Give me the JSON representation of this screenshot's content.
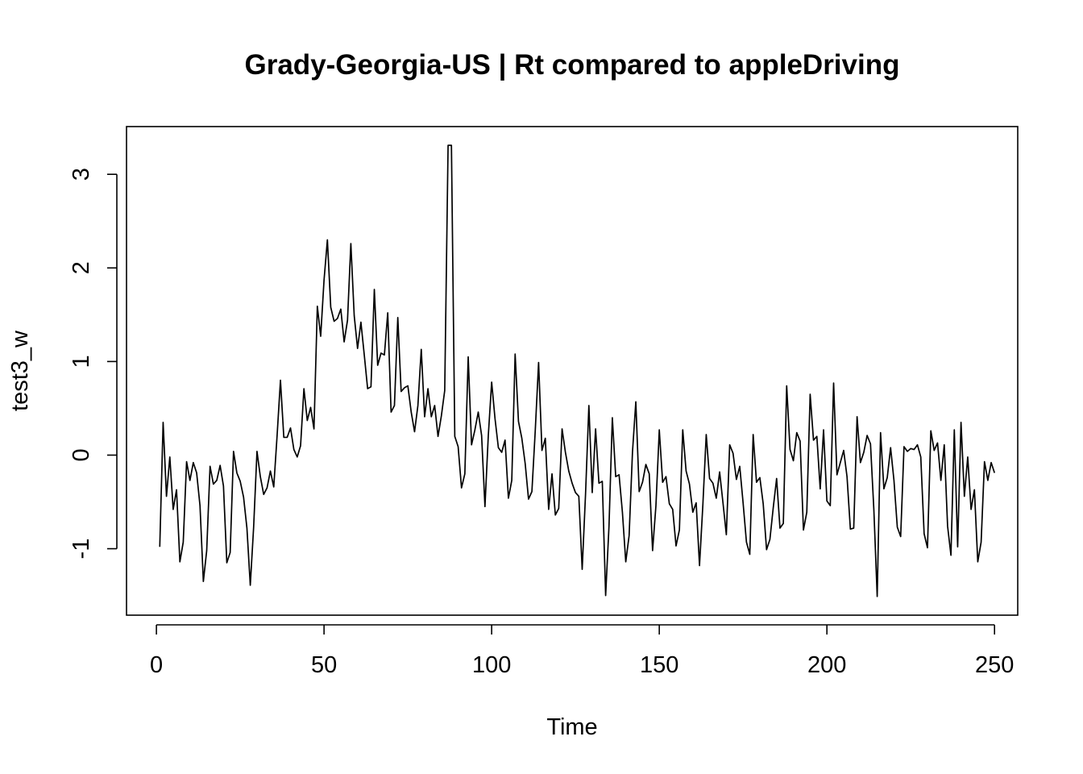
{
  "chart_data": {
    "type": "line",
    "title": "Grady-Georgia-US | Rt compared to appleDriving",
    "xlabel": "Time",
    "ylabel": "test3_w",
    "xlim": [
      -8.92,
      256.92
    ],
    "ylim": [
      -1.71,
      3.51
    ],
    "x_ticks": [
      0,
      50,
      100,
      150,
      200,
      250
    ],
    "x_tick_labels": [
      "0",
      "50",
      "100",
      "150",
      "200",
      "250"
    ],
    "y_ticks": [
      -1,
      0,
      1,
      2,
      3
    ],
    "y_tick_labels": [
      "-1",
      "0",
      "1",
      "2",
      "3"
    ],
    "grid": false,
    "series": [
      {
        "name": "",
        "x_start": 1,
        "values": [
          -0.98,
          0.35,
          -0.44,
          -0.02,
          -0.58,
          -0.37,
          -1.14,
          -0.93,
          -0.07,
          -0.27,
          -0.08,
          -0.19,
          -0.54,
          -1.35,
          -1.02,
          -0.12,
          -0.31,
          -0.27,
          -0.11,
          -0.33,
          -1.15,
          -1.04,
          0.04,
          -0.19,
          -0.28,
          -0.45,
          -0.78,
          -1.39,
          -0.77,
          0.04,
          -0.23,
          -0.42,
          -0.35,
          -0.17,
          -0.34,
          0.21,
          0.8,
          0.19,
          0.19,
          0.29,
          0.06,
          -0.02,
          0.1,
          0.71,
          0.37,
          0.51,
          0.28,
          1.59,
          1.27,
          1.87,
          2.3,
          1.58,
          1.43,
          1.46,
          1.56,
          1.21,
          1.44,
          2.26,
          1.49,
          1.14,
          1.42,
          1.07,
          0.71,
          0.73,
          1.77,
          0.96,
          1.09,
          1.07,
          1.52,
          0.46,
          0.53,
          1.47,
          0.68,
          0.72,
          0.74,
          0.46,
          0.25,
          0.53,
          1.13,
          0.41,
          0.71,
          0.41,
          0.53,
          0.2,
          0.42,
          0.69,
          3.31,
          3.31,
          0.2,
          0.09,
          -0.35,
          -0.2,
          1.05,
          0.11,
          0.27,
          0.46,
          0.21,
          -0.55,
          0.21,
          0.78,
          0.39,
          0.08,
          0.03,
          0.16,
          -0.46,
          -0.27,
          1.08,
          0.36,
          0.18,
          -0.09,
          -0.47,
          -0.39,
          0.26,
          0.99,
          0.05,
          0.18,
          -0.58,
          -0.2,
          -0.64,
          -0.57,
          0.28,
          0.03,
          -0.17,
          -0.3,
          -0.4,
          -0.44,
          -1.22,
          -0.42,
          0.53,
          -0.4,
          0.28,
          -0.3,
          -0.28,
          -1.5,
          -0.76,
          0.4,
          -0.23,
          -0.21,
          -0.61,
          -1.14,
          -0.86,
          0.03,
          0.57,
          -0.39,
          -0.29,
          -0.1,
          -0.2,
          -1.02,
          -0.54,
          0.27,
          -0.29,
          -0.23,
          -0.52,
          -0.58,
          -0.97,
          -0.8,
          0.27,
          -0.17,
          -0.31,
          -0.61,
          -0.51,
          -1.18,
          -0.53,
          0.22,
          -0.25,
          -0.3,
          -0.46,
          -0.18,
          -0.51,
          -0.85,
          0.11,
          0.02,
          -0.26,
          -0.12,
          -0.51,
          -0.93,
          -1.06,
          0.22,
          -0.29,
          -0.24,
          -0.52,
          -1.01,
          -0.9,
          -0.56,
          -0.25,
          -0.78,
          -0.73,
          0.74,
          0.06,
          -0.06,
          0.24,
          0.15,
          -0.8,
          -0.61,
          0.65,
          0.16,
          0.2,
          -0.36,
          0.27,
          -0.49,
          -0.54,
          0.77,
          -0.21,
          -0.08,
          0.05,
          -0.23,
          -0.79,
          -0.78,
          0.41,
          -0.08,
          0.03,
          0.21,
          0.12,
          -0.58,
          -1.51,
          0.24,
          -0.36,
          -0.24,
          0.08,
          -0.27,
          -0.77,
          -0.87,
          0.09,
          0.04,
          0.07,
          0.06,
          0.11,
          -0.02,
          -0.84,
          -0.99,
          0.26,
          0.05,
          0.13,
          -0.27,
          0.11,
          -0.76,
          -1.07,
          0.27,
          -0.98,
          0.35,
          -0.44,
          -0.02,
          -0.58,
          -0.37,
          -1.14,
          -0.93,
          -0.07,
          -0.27,
          -0.08,
          -0.19
        ]
      }
    ]
  }
}
